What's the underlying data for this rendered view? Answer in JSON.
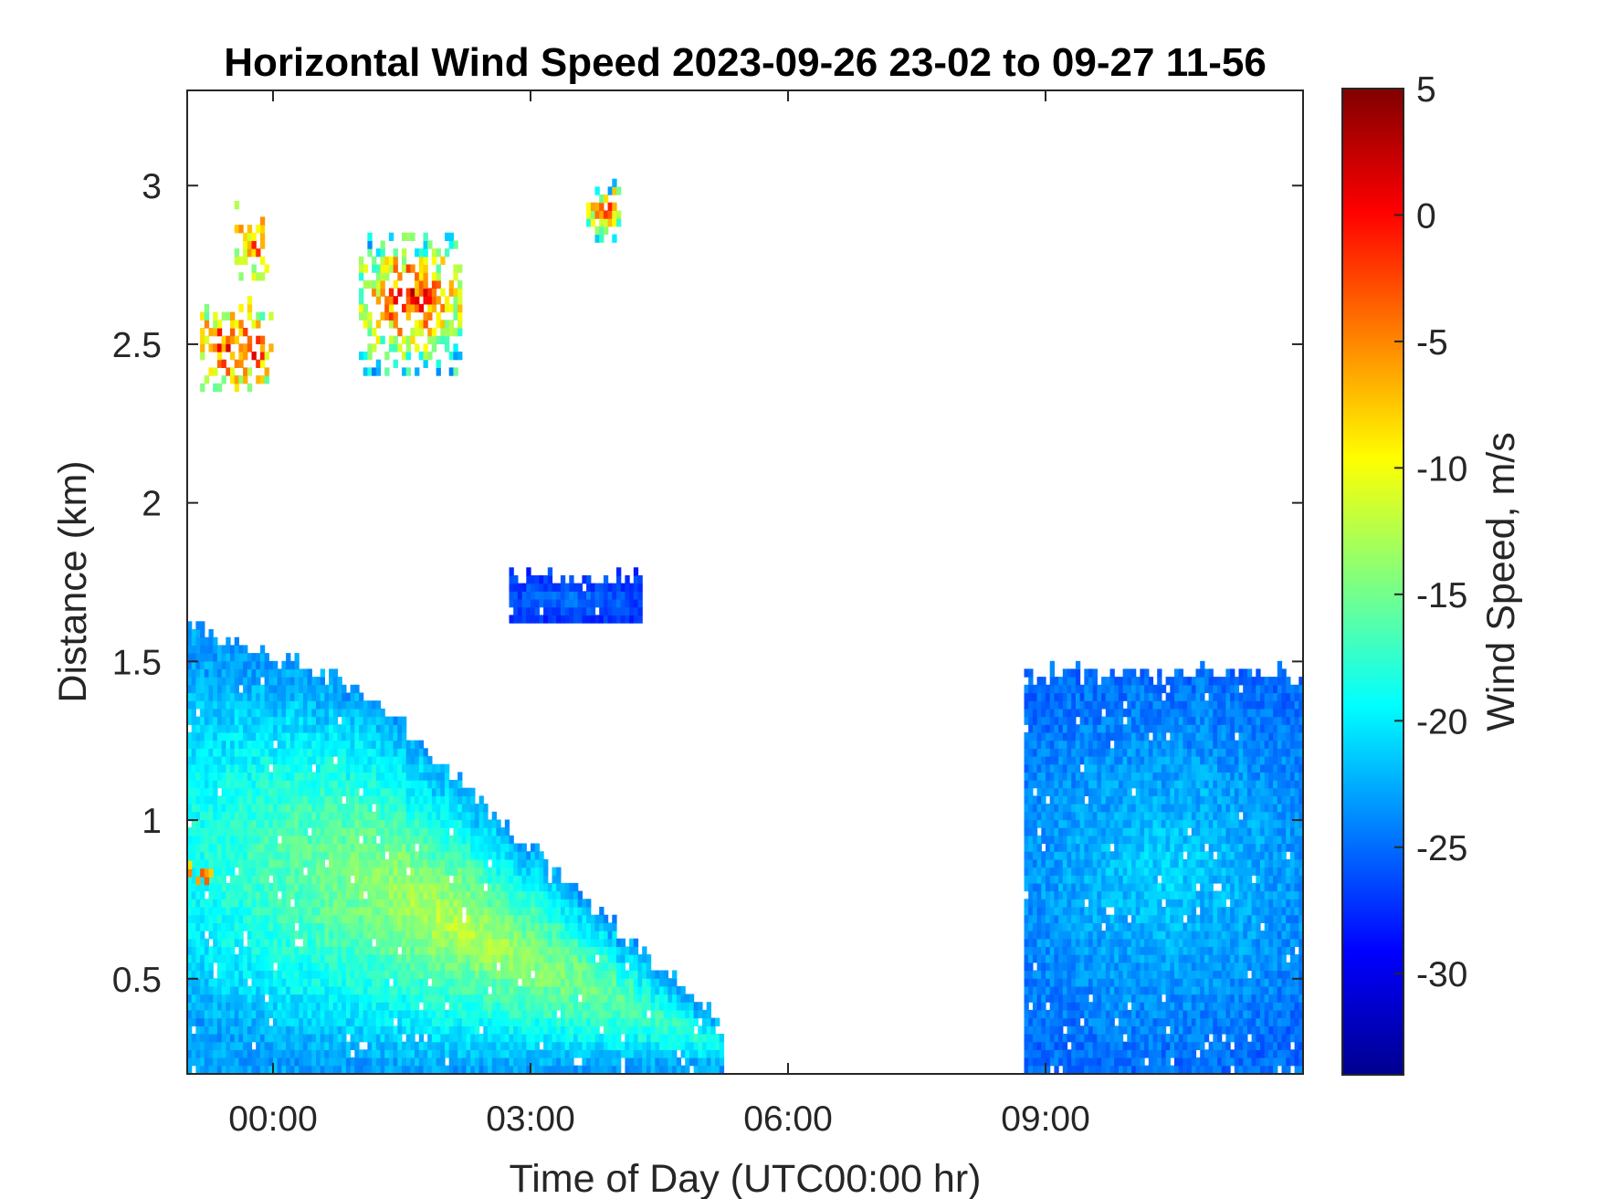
{
  "chart_data": {
    "type": "heatmap",
    "title": "Horizontal Wind Speed 2023-09-26 23-02 to 09-27 11-56",
    "xlabel": "Time of Day (UTC00:00 hr)",
    "ylabel": "Distance (km)",
    "x_range_hours": [
      -1.0,
      12.0
    ],
    "xticks": [
      {
        "value": 0,
        "label": "00:00"
      },
      {
        "value": 3,
        "label": "03:00"
      },
      {
        "value": 6,
        "label": "06:00"
      },
      {
        "value": 9,
        "label": "09:00"
      }
    ],
    "ylim": [
      0.2,
      3.3
    ],
    "yticks": [
      {
        "value": 0.5,
        "label": "0.5"
      },
      {
        "value": 1,
        "label": "1"
      },
      {
        "value": 1.5,
        "label": "1.5"
      },
      {
        "value": 2,
        "label": "2"
      },
      {
        "value": 2.5,
        "label": "2.5"
      },
      {
        "value": 3,
        "label": "3"
      }
    ],
    "colorbar": {
      "label": "Wind Speed, m/s",
      "range": [
        -34,
        5
      ],
      "colormap": "jet",
      "ticks": [
        {
          "value": 5,
          "label": "5"
        },
        {
          "value": 0,
          "label": "0"
        },
        {
          "value": -5,
          "label": "-5"
        },
        {
          "value": -10,
          "label": "-10"
        },
        {
          "value": -15,
          "label": "-15"
        },
        {
          "value": -20,
          "label": "-20"
        },
        {
          "value": -25,
          "label": "-25"
        },
        {
          "value": -30,
          "label": "-30"
        }
      ]
    },
    "grid": false,
    "cell_size": {
      "dt_hours": 0.05,
      "dz_km": 0.025
    },
    "regions": [
      {
        "name": "low-jet",
        "time_start": -1.0,
        "time_end": 5.25,
        "z_bottom": 0.2,
        "top_start": 1.6,
        "top_mid": 1.4,
        "top_mid_time": 1.0,
        "top_end": 0.33,
        "speed_core": -12,
        "speed_edge": -23
      },
      {
        "name": "morning-layer",
        "time_start": 8.75,
        "time_end": 12.0,
        "z_bottom": 0.2,
        "z_top": 1.45,
        "speed_core": -21,
        "speed_edge": -25
      },
      {
        "name": "mid-band",
        "time_start": 2.75,
        "time_end": 4.3,
        "z_bottom": 1.62,
        "z_top": 1.75,
        "speed_core": -25,
        "speed_edge": -27
      },
      {
        "name": "cloud-a",
        "time_start": -0.85,
        "time_end": 0.0,
        "z_bottom": 2.35,
        "z_top": 2.6,
        "speed_core": 0,
        "speed_edge": -12
      },
      {
        "name": "cloud-b",
        "time_start": -0.45,
        "time_end": -0.05,
        "z_bottom": 2.7,
        "z_top": 2.9,
        "speed_core": -4,
        "speed_edge": -12
      },
      {
        "name": "cloud-c",
        "time_start": 1.0,
        "time_end": 2.2,
        "z_bottom": 2.4,
        "z_top": 2.85,
        "speed_core": 1,
        "speed_edge": -20
      },
      {
        "name": "cloud-d",
        "time_start": 3.65,
        "time_end": 4.05,
        "z_bottom": 2.82,
        "z_top": 3.0,
        "speed_core": 2,
        "speed_edge": -22
      },
      {
        "name": "spot-1",
        "time_start": -1.0,
        "time_end": -0.7,
        "z_bottom": 0.77,
        "z_top": 0.85,
        "speed_core": -4,
        "speed_edge": -6
      }
    ]
  }
}
